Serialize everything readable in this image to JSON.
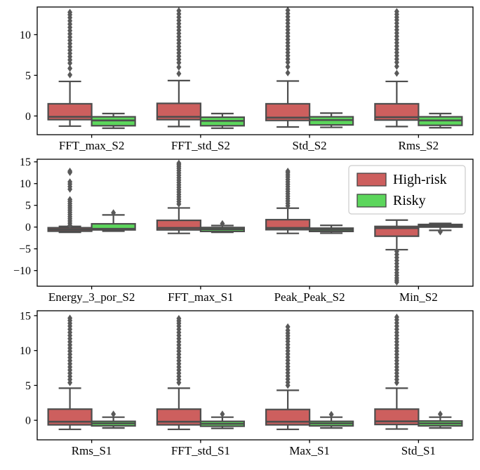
{
  "figure": {
    "type": "boxplot-grid",
    "background": "#ffffff",
    "n_subplots": 3
  },
  "colors": {
    "high_risk": "#cd5f5e",
    "risky": "#5cd65c",
    "box_edge": "#4d4d4d",
    "whisker": "#4d4d4d",
    "median": "#4d4d4d",
    "flier": "#595959",
    "spine": "#000000",
    "legend_border": "#cccccc",
    "legend_bg": "#ffffff"
  },
  "legend": {
    "location": "upper-right of middle subplot",
    "entries": [
      {
        "label": "High-risk",
        "color": "#cd5f5e"
      },
      {
        "label": "Risky",
        "color": "#5cd65c"
      }
    ]
  },
  "chart_data": [
    {
      "type": "box",
      "ylim": [
        -2.3,
        13.4
      ],
      "yticks": [
        0,
        5,
        10
      ],
      "ytick_labels": [
        "0",
        "5",
        "10"
      ],
      "categories": [
        "FFT_max_S2",
        "FFT_std_S2",
        "Std_S2",
        "Rms_S2"
      ],
      "legend": false,
      "series": [
        {
          "name": "High-risk",
          "color": "#cd5f5e",
          "boxes": [
            {
              "q1": -0.45,
              "med": -0.1,
              "q3": 1.5,
              "whislo": -1.25,
              "whishi": 4.25,
              "fliers": [
                5.05,
                5.85,
                6.5,
                6.9,
                7.3,
                7.7,
                8.1,
                8.5,
                8.9,
                9.3,
                9.7,
                10.1,
                10.5,
                10.9,
                11.3,
                11.7,
                12.1,
                12.45,
                12.75
              ]
            },
            {
              "q1": -0.45,
              "med": -0.1,
              "q3": 1.55,
              "whislo": -1.3,
              "whishi": 4.35,
              "fliers": [
                5.2,
                6.0,
                6.55,
                6.95,
                7.35,
                7.75,
                8.15,
                8.55,
                8.95,
                9.35,
                9.75,
                10.15,
                10.55,
                10.95,
                11.35,
                11.75,
                12.15,
                12.55,
                12.95
              ]
            },
            {
              "q1": -0.55,
              "med": -0.2,
              "q3": 1.5,
              "whislo": -1.35,
              "whishi": 4.3,
              "fliers": [
                5.3,
                6.05,
                6.6,
                7.0,
                7.4,
                7.8,
                8.2,
                8.6,
                9.0,
                9.4,
                9.8,
                10.2,
                10.6,
                11.0,
                11.4,
                11.8,
                12.2,
                12.6,
                13.0
              ]
            },
            {
              "q1": -0.5,
              "med": -0.15,
              "q3": 1.5,
              "whislo": -1.3,
              "whishi": 4.25,
              "fliers": [
                5.25,
                6.1,
                6.6,
                7.0,
                7.4,
                7.8,
                8.2,
                8.6,
                9.0,
                9.4,
                9.8,
                10.2,
                10.6,
                11.0,
                11.4,
                11.8,
                12.15,
                12.5,
                12.85
              ]
            }
          ]
        },
        {
          "name": "Risky",
          "color": "#5cd65c",
          "boxes": [
            {
              "q1": -1.2,
              "med": -0.55,
              "q3": -0.1,
              "whislo": -1.5,
              "whishi": 0.3,
              "fliers": []
            },
            {
              "q1": -1.2,
              "med": -0.6,
              "q3": -0.15,
              "whislo": -1.5,
              "whishi": 0.3,
              "fliers": []
            },
            {
              "q1": -1.1,
              "med": -0.5,
              "q3": -0.1,
              "whislo": -1.4,
              "whishi": 0.35,
              "fliers": []
            },
            {
              "q1": -1.15,
              "med": -0.55,
              "q3": -0.1,
              "whislo": -1.45,
              "whishi": 0.3,
              "fliers": []
            }
          ]
        }
      ]
    },
    {
      "type": "box",
      "ylim": [
        -13.6,
        15.6
      ],
      "yticks": [
        -10,
        -5,
        0,
        5,
        10,
        15
      ],
      "ytick_labels": [
        "−10",
        "−5",
        "0",
        "5",
        "10",
        "15"
      ],
      "categories": [
        "Energy_3_por_S2",
        "FFT_max_S1",
        "Peak_Peak_S2",
        "Min_S2"
      ],
      "legend": true,
      "series": [
        {
          "name": "High-risk",
          "color": "#cd5f5e",
          "boxes": [
            {
              "q1": -0.95,
              "med": -0.55,
              "q3": -0.15,
              "whislo": -1.2,
              "whishi": 0.15,
              "fliers": [
                0.4,
                0.9,
                1.4,
                1.9,
                2.4,
                2.9,
                3.4,
                3.9,
                4.4,
                4.9,
                5.4,
                5.9,
                6.35,
                8.7,
                9.3,
                9.9,
                10.4,
                12.55,
                12.85
              ]
            },
            {
              "q1": -0.65,
              "med": -0.2,
              "q3": 1.55,
              "whislo": -1.45,
              "whishi": 4.4,
              "fliers": [
                5.3,
                5.85,
                6.4,
                6.95,
                7.5,
                8.05,
                8.6,
                9.15,
                9.7,
                10.25,
                10.8,
                11.35,
                11.9,
                12.45,
                13.0,
                13.5,
                13.95,
                14.35,
                14.7
              ]
            },
            {
              "q1": -0.6,
              "med": -0.2,
              "q3": 1.7,
              "whislo": -1.45,
              "whishi": 4.35,
              "fliers": [
                4.9,
                5.45,
                6.0,
                6.55,
                7.1,
                7.65,
                8.2,
                8.75,
                9.3,
                9.85,
                10.4,
                10.95,
                11.5,
                12.0,
                12.5,
                12.85
              ]
            },
            {
              "q1": -2.1,
              "med": -0.25,
              "q3": 0.15,
              "whislo": -5.2,
              "whishi": 1.6,
              "fliers": [
                -5.6,
                -6.3,
                -7.0,
                -7.7,
                -8.4,
                -9.1,
                -9.8,
                -10.5,
                -11.1,
                -11.7,
                -12.2,
                -12.65
              ]
            }
          ]
        },
        {
          "name": "Risky",
          "color": "#5cd65c",
          "boxes": [
            {
              "q1": -0.65,
              "med": -0.4,
              "q3": 0.75,
              "whislo": -0.95,
              "whishi": 2.8,
              "fliers": [
                3.3
              ]
            },
            {
              "q1": -1.0,
              "med": -0.5,
              "q3": -0.1,
              "whislo": -1.2,
              "whishi": 0.35,
              "fliers": [
                0.8
              ]
            },
            {
              "q1": -1.0,
              "med": -0.6,
              "q3": -0.25,
              "whislo": -1.4,
              "whishi": 0.4,
              "fliers": []
            },
            {
              "q1": 0.0,
              "med": 0.3,
              "q3": 0.6,
              "whislo": -0.75,
              "whishi": 0.85,
              "fliers": [
                -1.1
              ]
            }
          ]
        }
      ]
    },
    {
      "type": "box",
      "ylim": [
        -2.8,
        15.7
      ],
      "yticks": [
        0,
        5,
        10,
        15
      ],
      "ytick_labels": [
        "0",
        "5",
        "10",
        "15"
      ],
      "categories": [
        "Rms_S1",
        "FFT_std_S1",
        "Max_S1",
        "Std_S1"
      ],
      "legend": false,
      "series": [
        {
          "name": "High-risk",
          "color": "#cd5f5e",
          "boxes": [
            {
              "q1": -0.65,
              "med": -0.2,
              "q3": 1.6,
              "whislo": -1.3,
              "whishi": 4.6,
              "fliers": [
                5.4,
                5.85,
                6.3,
                6.75,
                7.2,
                7.65,
                8.1,
                8.55,
                9.0,
                9.45,
                9.9,
                10.35,
                10.8,
                11.25,
                11.7,
                12.15,
                12.6,
                13.05,
                13.5,
                13.9,
                14.3,
                14.65
              ]
            },
            {
              "q1": -0.65,
              "med": -0.2,
              "q3": 1.6,
              "whislo": -1.3,
              "whishi": 4.6,
              "fliers": [
                5.4,
                5.85,
                6.3,
                6.75,
                7.2,
                7.65,
                8.1,
                8.55,
                9.0,
                9.45,
                9.9,
                10.35,
                10.8,
                11.25,
                11.7,
                12.15,
                12.6,
                13.05,
                13.5,
                13.9,
                14.25,
                14.6
              ]
            },
            {
              "q1": -0.65,
              "med": -0.2,
              "q3": 1.55,
              "whislo": -1.3,
              "whishi": 4.3,
              "fliers": [
                5.0,
                5.45,
                5.9,
                6.35,
                6.8,
                7.25,
                7.7,
                8.15,
                8.6,
                9.05,
                9.5,
                9.95,
                10.4,
                10.85,
                11.3,
                11.7,
                12.1,
                12.5,
                12.9,
                13.4
              ]
            },
            {
              "q1": -0.6,
              "med": -0.15,
              "q3": 1.6,
              "whislo": -1.25,
              "whishi": 4.6,
              "fliers": [
                5.4,
                5.85,
                6.3,
                6.75,
                7.2,
                7.65,
                8.1,
                8.55,
                9.0,
                9.45,
                9.9,
                10.35,
                10.8,
                11.25,
                11.7,
                12.15,
                12.6,
                13.05,
                13.5,
                13.95,
                14.4,
                14.8
              ]
            }
          ]
        },
        {
          "name": "Risky",
          "color": "#5cd65c",
          "boxes": [
            {
              "q1": -0.8,
              "med": -0.45,
              "q3": -0.15,
              "whislo": -1.1,
              "whishi": 0.45,
              "fliers": [
                0.9
              ]
            },
            {
              "q1": -0.85,
              "med": -0.5,
              "q3": -0.15,
              "whislo": -1.15,
              "whishi": 0.45,
              "fliers": [
                0.9
              ]
            },
            {
              "q1": -0.8,
              "med": -0.45,
              "q3": -0.15,
              "whislo": -1.1,
              "whishi": 0.45,
              "fliers": [
                0.85
              ]
            },
            {
              "q1": -0.8,
              "med": -0.45,
              "q3": -0.1,
              "whislo": -1.1,
              "whishi": 0.45,
              "fliers": [
                0.9
              ]
            }
          ]
        }
      ]
    }
  ]
}
